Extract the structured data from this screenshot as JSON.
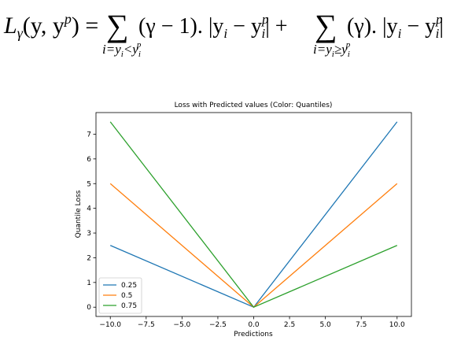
{
  "formula": {
    "lhs": [
      "L",
      "γ",
      "(y, y",
      "p",
      ") ="
    ],
    "sum1": "∑",
    "term1": [
      "(γ − 1). |y",
      "i",
      " − y",
      "p",
      "i",
      "| +"
    ],
    "under1": [
      "i=y",
      "i",
      "<y",
      "i",
      "p"
    ],
    "sum2": "∑",
    "term2": [
      "(γ). |y",
      "i",
      " − y",
      "p",
      "i",
      "|"
    ],
    "under2": [
      "i=y",
      "i",
      "≥y",
      "i",
      "p"
    ]
  },
  "chart_data": {
    "type": "line",
    "title": "Loss with Predicted values (Color: Quantiles)",
    "x_label": "Predictions",
    "y_label": "Quantile Loss",
    "x": [
      -10,
      0,
      10
    ],
    "series": [
      {
        "name": "0.25",
        "color": "#1f77b4",
        "values": [
          2.5,
          0,
          7.5
        ]
      },
      {
        "name": "0.5",
        "color": "#ff7f0e",
        "values": [
          5,
          0,
          5
        ]
      },
      {
        "name": "0.75",
        "color": "#2ca02c",
        "values": [
          7.5,
          0,
          2.5
        ]
      }
    ],
    "xlim": [
      -11,
      11
    ],
    "xticks": [
      {
        "value": -10,
        "label": "−10.0"
      },
      {
        "value": -7.5,
        "label": "−7.5"
      },
      {
        "value": -5,
        "label": "−5.0"
      },
      {
        "value": -2.5,
        "label": "−2.5"
      },
      {
        "value": 0,
        "label": "0.0"
      },
      2.5,
      {
        "value": 5,
        "label": "5.0"
      },
      7.5,
      {
        "value": 10,
        "label": "10.0"
      }
    ],
    "ylim": [
      -0.375,
      7.875
    ],
    "yticks": [
      0,
      1,
      2,
      3,
      4,
      5,
      6,
      7
    ],
    "legend": "lower left"
  }
}
